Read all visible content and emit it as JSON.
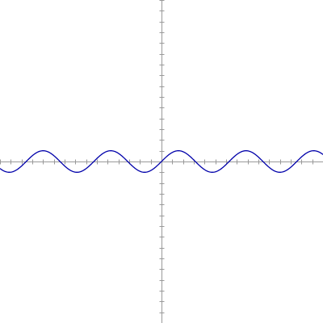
{
  "colors": {
    "background": "#ffffff",
    "axis": "#999999",
    "curve": "#0000aa"
  },
  "chart_data": {
    "type": "line",
    "title": "",
    "xlabel": "",
    "ylabel": "",
    "grid": false,
    "legend": "none",
    "xlim": [
      -15,
      15
    ],
    "ylim": [
      -15,
      15
    ],
    "tick_step": 1,
    "tick_labels": "none",
    "function": "y = sin(x)",
    "series": [
      {
        "samples": 120,
        "x_range": [
          -15,
          15
        ],
        "amplitude": 1,
        "period": 6.283
      }
    ]
  }
}
